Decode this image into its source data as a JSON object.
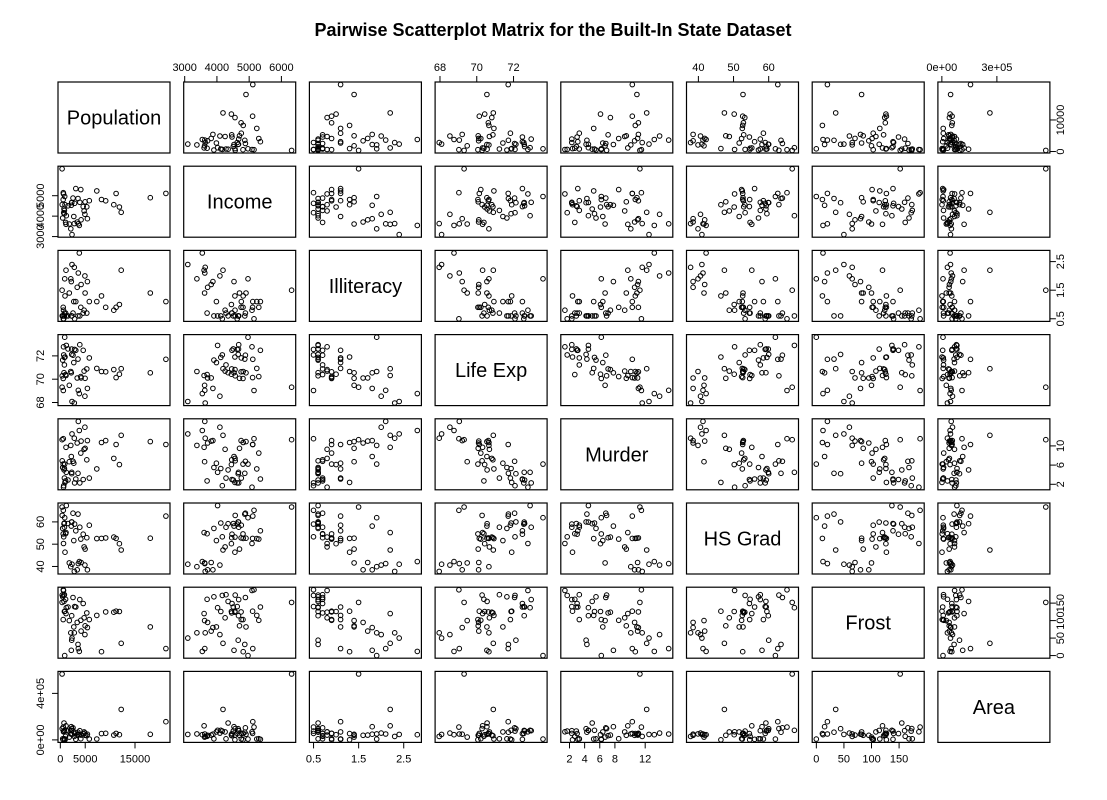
{
  "chart_data": {
    "type": "scatter",
    "layout": "scatterplot-matrix",
    "title": "Pairwise Scatterplot Matrix for the Built-In State Dataset",
    "variables": [
      {
        "name": "Population",
        "min": 365,
        "max": 21198,
        "ticks": [
          0,
          10000
        ],
        "tick_labels": [
          "0",
          "10000"
        ],
        "bottom_ticks": [
          0,
          5000,
          15000
        ],
        "bottom_tick_labels": [
          "0",
          "5000",
          "15000"
        ],
        "tick_side": "right"
      },
      {
        "name": "Income",
        "min": 3098,
        "max": 6315,
        "ticks": [
          3000,
          4000,
          5000,
          6000
        ],
        "tick_labels": [
          "3000",
          "4000",
          "5000",
          "6000"
        ],
        "left_ticks": [
          3000,
          4000,
          5000
        ],
        "left_tick_labels": [
          "3000",
          "4000",
          "5000"
        ],
        "tick_side": "top"
      },
      {
        "name": "Illiteracy",
        "min": 0.5,
        "max": 2.8,
        "ticks": [
          0.5,
          1.5,
          2.5
        ],
        "tick_labels": [
          "0.5",
          "1.5",
          "2.5"
        ],
        "tick_side": "bottom"
      },
      {
        "name": "Life Exp",
        "min": 67.96,
        "max": 73.6,
        "ticks": [
          68,
          70,
          72
        ],
        "tick_labels": [
          "68",
          "70",
          "72"
        ],
        "tick_side": "top"
      },
      {
        "name": "Murder",
        "min": 1.4,
        "max": 15.1,
        "ticks": [
          2,
          4,
          6,
          8,
          12
        ],
        "tick_labels": [
          "2",
          "4",
          "6",
          "8",
          "12"
        ],
        "right_ticks": [
          2,
          6,
          10
        ],
        "right_tick_labels": [
          "2",
          "6",
          "10"
        ],
        "tick_side": "bottom"
      },
      {
        "name": "HS Grad",
        "min": 37.8,
        "max": 67.3,
        "ticks": [
          40,
          50,
          60
        ],
        "tick_labels": [
          "40",
          "50",
          "60"
        ],
        "tick_side": "top"
      },
      {
        "name": "Frost",
        "min": 0,
        "max": 188,
        "ticks": [
          0,
          50,
          100,
          150
        ],
        "tick_labels": [
          "0",
          "50",
          "100",
          "150"
        ],
        "bottom_ticks": [
          0,
          50,
          100,
          150
        ],
        "bottom_tick_labels": [
          "0",
          "50",
          "100",
          "150"
        ],
        "tick_side": "right"
      },
      {
        "name": "Area",
        "min": 1049,
        "max": 566432,
        "ticks": [
          0,
          400000
        ],
        "tick_labels": [
          "0e+00",
          "4e+05"
        ],
        "top_ticks": [
          0,
          300000
        ],
        "top_tick_labels": [
          "0e+00",
          "3e+05"
        ],
        "tick_side": "left"
      }
    ],
    "observations": [
      [
        3615,
        3624,
        2.1,
        69.05,
        15.1,
        41.3,
        20,
        50708
      ],
      [
        365,
        6315,
        1.5,
        69.31,
        11.3,
        66.7,
        152,
        566432
      ],
      [
        2212,
        4530,
        1.8,
        70.55,
        7.8,
        58.1,
        15,
        113417
      ],
      [
        2110,
        3378,
        1.9,
        70.66,
        10.1,
        39.9,
        65,
        51945
      ],
      [
        21198,
        5114,
        1.1,
        71.71,
        10.3,
        62.6,
        20,
        156361
      ],
      [
        2541,
        4884,
        0.7,
        72.06,
        6.8,
        63.9,
        166,
        103766
      ],
      [
        3100,
        5348,
        1.1,
        72.48,
        3.1,
        56.0,
        139,
        4862
      ],
      [
        579,
        4809,
        0.9,
        70.06,
        6.2,
        54.6,
        103,
        1982
      ],
      [
        8277,
        4815,
        1.3,
        70.66,
        10.7,
        52.6,
        11,
        54090
      ],
      [
        4931,
        4091,
        2.0,
        68.54,
        13.9,
        40.6,
        60,
        58073
      ],
      [
        868,
        4963,
        1.9,
        73.6,
        6.2,
        61.9,
        0,
        6425
      ],
      [
        813,
        4119,
        0.6,
        71.87,
        5.3,
        59.5,
        126,
        82677
      ],
      [
        11197,
        5107,
        0.9,
        70.14,
        10.3,
        52.6,
        127,
        55748
      ],
      [
        5313,
        4458,
        0.7,
        70.88,
        7.1,
        52.9,
        122,
        36097
      ],
      [
        2861,
        4628,
        0.5,
        72.56,
        2.3,
        59.0,
        140,
        55941
      ],
      [
        2280,
        4669,
        0.6,
        72.58,
        4.5,
        59.9,
        114,
        81787
      ],
      [
        3387,
        3712,
        1.6,
        70.1,
        10.6,
        38.5,
        95,
        39650
      ],
      [
        3806,
        3545,
        2.8,
        68.76,
        13.2,
        42.2,
        12,
        44930
      ],
      [
        1058,
        3694,
        0.7,
        70.39,
        2.7,
        54.7,
        161,
        30920
      ],
      [
        4122,
        5299,
        0.9,
        70.22,
        8.5,
        52.3,
        101,
        9891
      ],
      [
        5814,
        4755,
        1.1,
        71.83,
        3.3,
        58.5,
        103,
        7826
      ],
      [
        9111,
        4751,
        0.9,
        70.63,
        11.1,
        52.8,
        125,
        56817
      ],
      [
        3921,
        4675,
        0.6,
        72.96,
        2.3,
        57.6,
        160,
        79289
      ],
      [
        2341,
        3098,
        2.4,
        68.09,
        12.5,
        41.0,
        50,
        47296
      ],
      [
        4767,
        4254,
        0.8,
        70.69,
        9.3,
        48.8,
        108,
        68995
      ],
      [
        746,
        4347,
        0.6,
        70.56,
        5.0,
        59.2,
        155,
        145587
      ],
      [
        1544,
        4508,
        0.6,
        72.6,
        2.9,
        59.3,
        139,
        76483
      ],
      [
        590,
        5149,
        0.5,
        69.03,
        11.5,
        65.2,
        188,
        109889
      ],
      [
        812,
        4281,
        0.7,
        71.23,
        3.3,
        57.6,
        174,
        9027
      ],
      [
        7333,
        5237,
        1.1,
        70.93,
        5.2,
        52.5,
        115,
        7521
      ],
      [
        1144,
        3601,
        2.2,
        70.32,
        9.7,
        55.2,
        120,
        121412
      ],
      [
        18076,
        4903,
        1.4,
        70.55,
        10.9,
        52.7,
        82,
        47831
      ],
      [
        5441,
        3875,
        1.8,
        69.21,
        11.1,
        38.5,
        80,
        48798
      ],
      [
        637,
        5087,
        0.8,
        72.78,
        1.4,
        50.3,
        186,
        69273
      ],
      [
        10735,
        4561,
        0.8,
        70.82,
        7.4,
        53.2,
        124,
        40975
      ],
      [
        2715,
        3983,
        1.1,
        71.42,
        6.4,
        51.6,
        82,
        68782
      ],
      [
        2284,
        4660,
        0.6,
        72.13,
        4.2,
        60.0,
        44,
        96184
      ],
      [
        11860,
        4449,
        1.0,
        70.43,
        6.1,
        50.2,
        126,
        44966
      ],
      [
        931,
        4558,
        1.3,
        71.9,
        2.4,
        46.4,
        127,
        1049
      ],
      [
        2816,
        3635,
        2.3,
        67.96,
        11.6,
        37.8,
        65,
        30225
      ],
      [
        681,
        4167,
        0.5,
        72.08,
        1.7,
        53.3,
        172,
        75955
      ],
      [
        4173,
        3821,
        1.7,
        70.11,
        11.0,
        41.8,
        70,
        41328
      ],
      [
        12237,
        4188,
        2.2,
        70.9,
        12.2,
        47.4,
        35,
        262134
      ],
      [
        1203,
        4022,
        0.6,
        72.9,
        4.5,
        67.3,
        137,
        82096
      ],
      [
        472,
        3907,
        0.6,
        71.64,
        5.5,
        57.1,
        168,
        9267
      ],
      [
        4981,
        4701,
        1.4,
        70.08,
        9.5,
        47.8,
        85,
        39780
      ],
      [
        3559,
        4864,
        0.6,
        71.72,
        4.3,
        63.5,
        32,
        66570
      ],
      [
        1799,
        3617,
        1.4,
        69.48,
        6.7,
        41.6,
        100,
        24070
      ],
      [
        4589,
        4468,
        0.7,
        72.48,
        3.0,
        54.5,
        149,
        54464
      ],
      [
        376,
        4566,
        0.6,
        70.29,
        6.9,
        62.9,
        173,
        97203
      ]
    ]
  }
}
